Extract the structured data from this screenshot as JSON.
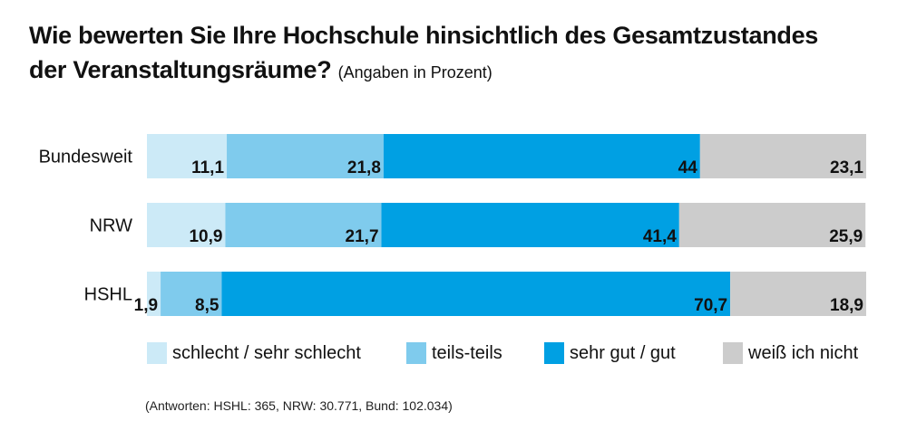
{
  "title": {
    "main_line1": "Wie bewerten Sie Ihre Hochschule hinsichtlich des Gesamtzustandes",
    "main_line2": "der Veranstaltungsräume?",
    "note": "(Angaben in Prozent)"
  },
  "footnote": "(Antworten: HSHL: 365, NRW: 30.771, Bund: 102.034)",
  "chart_data": {
    "type": "bar",
    "orientation": "horizontal",
    "stacked": true,
    "categories": [
      "Bundesweit",
      "NRW",
      "HSHL"
    ],
    "series": [
      {
        "name": "schlecht / sehr schlecht",
        "color": "#cceaf7",
        "values": [
          11.1,
          10.9,
          1.9
        ],
        "labels": [
          "11,1",
          "10,9",
          "1,9"
        ]
      },
      {
        "name": "teils-teils",
        "color": "#7fcbed",
        "values": [
          21.8,
          21.7,
          8.5
        ],
        "labels": [
          "21,8",
          "21,7",
          "8,5"
        ]
      },
      {
        "name": "sehr gut / gut",
        "color": "#00a0e3",
        "values": [
          44,
          41.4,
          70.7
        ],
        "labels": [
          "44",
          "41,4",
          "70,7"
        ]
      },
      {
        "name": "weiß ich nicht",
        "color": "#cccccc",
        "values": [
          23.1,
          25.9,
          18.9
        ],
        "labels": [
          "23,1",
          "25,9",
          "18,9"
        ]
      }
    ],
    "xlim": [
      0,
      100
    ],
    "grid": false,
    "legend_position": "bottom"
  }
}
